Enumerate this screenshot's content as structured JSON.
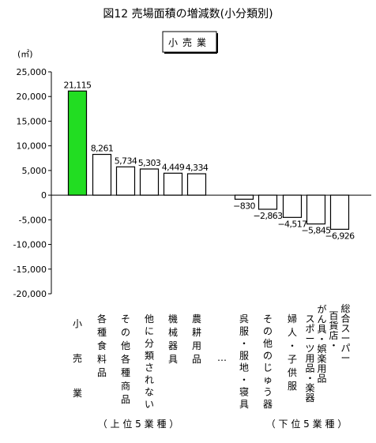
{
  "chart_data": {
    "type": "bar",
    "title": "図12 売場面積の増減数(小分類別)",
    "subtitle": "小売業",
    "ylabel": "(㎡)",
    "ylim": [
      -20000,
      25000
    ],
    "yticks": [
      "25,000",
      "20,000",
      "15,000",
      "10,000",
      "5,000",
      "0",
      "-5,000",
      "-10,000",
      "-15,000",
      "-20,000"
    ],
    "ytick_values": [
      25000,
      20000,
      15000,
      10000,
      5000,
      0,
      -5000,
      -10000,
      -15000,
      -20000
    ],
    "categories": [
      "小売業",
      "各種食料品",
      "その他各種商品",
      "他に分類されない",
      "機械器具",
      "農耕用品",
      "…",
      "呉服・服地・寝具",
      "その他のじゅう器",
      "婦人・子供服",
      "がん具・娯楽用品スポーツ用品・楽器",
      "百貨店・総合スーパー"
    ],
    "values": [
      21115,
      8261,
      5734,
      5303,
      4449,
      4334,
      null,
      -830,
      -2863,
      -4517,
      -5845,
      -6926
    ],
    "value_labels": [
      "21,115",
      "8,261",
      "5,734",
      "5,303",
      "4,449",
      "4,334",
      "",
      "−830",
      "−2,863",
      "−4,517",
      "−5,845",
      "−6,926"
    ],
    "highlight_color": "#22dd22",
    "bar_color": "#ffffff",
    "group_labels": [
      "（ 上 位 5 業 種 ）",
      "（ 下 位 5 業 種 ）"
    ],
    "grid": false
  }
}
